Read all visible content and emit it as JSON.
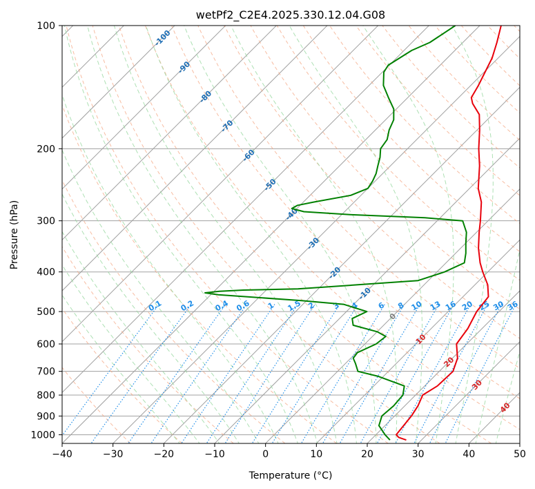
{
  "colors": {
    "temperature": "#e8000b",
    "dewpoint": "#008000",
    "isotherm": "#a0a0a0",
    "isobar": "#a0a0a0",
    "dry_adiabat": "#f4a582",
    "moist_adiabat": "#99d8a0",
    "mixing_ratio": "#1f8ee8",
    "isotherm_label": "#1f6fb5",
    "warm_label": "#d62728",
    "zero_label": "#808080"
  },
  "chart_data": {
    "type": "line",
    "title": "wetPf2_C2E4.2025.330.12.04.G08",
    "xlabel": "Temperature (°C)",
    "ylabel": "Pressure (hPa)",
    "xlim": [
      -40,
      50
    ],
    "ylim": [
      1050,
      100
    ],
    "x_ticks": [
      "−40",
      "−30",
      "−20",
      "−10",
      "0",
      "10",
      "20",
      "30",
      "40",
      "50"
    ],
    "x_tick_values": [
      -40,
      -30,
      -20,
      -10,
      0,
      10,
      20,
      30,
      40,
      50
    ],
    "y_ticks": [
      "100",
      "200",
      "300",
      "400",
      "500",
      "600",
      "700",
      "800",
      "900",
      "1000"
    ],
    "y_tick_values": [
      100,
      200,
      300,
      400,
      500,
      600,
      700,
      800,
      900,
      1000
    ],
    "skew": "isotherms slanted 45°",
    "isotherm_labels": [
      {
        "text": "-100",
        "t": -100
      },
      {
        "text": "-90",
        "t": -90
      },
      {
        "text": "-80",
        "t": -80
      },
      {
        "text": "-70",
        "t": -70
      },
      {
        "text": "-60",
        "t": -60
      },
      {
        "text": "-50",
        "t": -50
      },
      {
        "text": "-40",
        "t": -40
      },
      {
        "text": "-30",
        "t": -30
      },
      {
        "text": "-20",
        "t": -20
      },
      {
        "text": "-10",
        "t": -10
      },
      {
        "text": "0",
        "t": 0
      },
      {
        "text": "10",
        "t": 10
      },
      {
        "text": "20",
        "t": 20
      },
      {
        "text": "30",
        "t": 30
      },
      {
        "text": "40",
        "t": 40
      }
    ],
    "mixing_ratio_labels": [
      "0.1",
      "0.2",
      "0.4",
      "0.6",
      "1",
      "1.5",
      "2",
      "3",
      "4",
      "6",
      "8",
      "10",
      "13",
      "16",
      "20",
      "25",
      "30",
      "36"
    ],
    "mixing_ratio_values": [
      0.1,
      0.2,
      0.4,
      0.6,
      1,
      1.5,
      2,
      3,
      4,
      6,
      8,
      10,
      13,
      16,
      20,
      25,
      30,
      36
    ],
    "series": [
      {
        "name": "Temperature",
        "color": "#e8000b",
        "points": [
          [
            1030,
            27.0
          ],
          [
            1015,
            25.0
          ],
          [
            1000,
            24.0
          ],
          [
            900,
            23.3
          ],
          [
            850,
            22.6
          ],
          [
            800,
            21.4
          ],
          [
            760,
            22.5
          ],
          [
            700,
            22.7
          ],
          [
            650,
            21.0
          ],
          [
            600,
            18.0
          ],
          [
            550,
            17.2
          ],
          [
            500,
            15.6
          ],
          [
            460,
            15.0
          ],
          [
            430,
            12.5
          ],
          [
            400,
            9.0
          ],
          [
            380,
            6.7
          ],
          [
            350,
            3.5
          ],
          [
            320,
            0.5
          ],
          [
            300,
            -1.5
          ],
          [
            270,
            -5.0
          ],
          [
            250,
            -8.3
          ],
          [
            220,
            -12.5
          ],
          [
            200,
            -16.0
          ],
          [
            180,
            -19.5
          ],
          [
            165,
            -22.6
          ],
          [
            155,
            -26.1
          ],
          [
            150,
            -27.5
          ],
          [
            140,
            -28.5
          ],
          [
            130,
            -29.8
          ],
          [
            120,
            -31.2
          ],
          [
            110,
            -33.3
          ],
          [
            100,
            -35.8
          ]
        ]
      },
      {
        "name": "Dewpoint",
        "color": "#008000",
        "points": [
          [
            1030,
            23.8
          ],
          [
            1000,
            21.8
          ],
          [
            950,
            18.8
          ],
          [
            900,
            17.5
          ],
          [
            850,
            17.8
          ],
          [
            800,
            17.5
          ],
          [
            760,
            16.0
          ],
          [
            720,
            9.0
          ],
          [
            700,
            4.0
          ],
          [
            670,
            2.0
          ],
          [
            650,
            0.5
          ],
          [
            630,
            0.2
          ],
          [
            600,
            2.2
          ],
          [
            575,
            2.6
          ],
          [
            560,
            0.0
          ],
          [
            540,
            -6.0
          ],
          [
            520,
            -7.5
          ],
          [
            500,
            -6.0
          ],
          [
            480,
            -12.0
          ],
          [
            470,
            -21.0
          ],
          [
            455,
            -38.5
          ],
          [
            450,
            -41.5
          ],
          [
            446,
            -39.0
          ],
          [
            443,
            -34.5
          ],
          [
            440,
            -24.0
          ],
          [
            430,
            -13.0
          ],
          [
            420,
            -2.0
          ],
          [
            400,
            1.5
          ],
          [
            380,
            3.6
          ],
          [
            360,
            2.0
          ],
          [
            340,
            0.0
          ],
          [
            320,
            -2.0
          ],
          [
            300,
            -5.0
          ],
          [
            295,
            -13.0
          ],
          [
            290,
            -28.0
          ],
          [
            285,
            -38.0
          ],
          [
            280,
            -41.0
          ],
          [
            275,
            -40.5
          ],
          [
            270,
            -38.0
          ],
          [
            260,
            -32.0
          ],
          [
            250,
            -30.0
          ],
          [
            240,
            -30.5
          ],
          [
            230,
            -31.3
          ],
          [
            220,
            -32.5
          ],
          [
            210,
            -33.7
          ],
          [
            200,
            -35.3
          ],
          [
            190,
            -35.8
          ],
          [
            180,
            -37.3
          ],
          [
            170,
            -38.4
          ],
          [
            160,
            -40.5
          ],
          [
            150,
            -43.8
          ],
          [
            140,
            -47.2
          ],
          [
            130,
            -49.7
          ],
          [
            125,
            -50.2
          ],
          [
            115,
            -48.5
          ],
          [
            110,
            -46.5
          ],
          [
            100,
            -44.8
          ]
        ]
      }
    ]
  }
}
